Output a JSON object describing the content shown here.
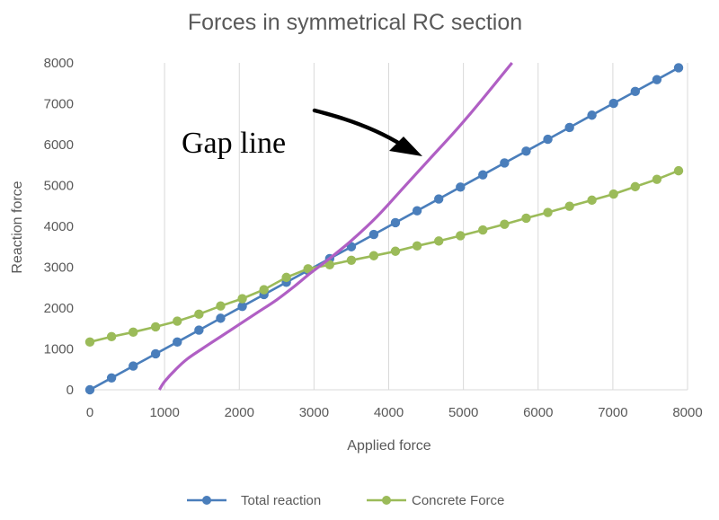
{
  "chart_data": {
    "type": "line",
    "title": "Forces in symmetrical RC section",
    "xlabel": "Applied force",
    "ylabel": "Reaction force",
    "xlim": [
      0,
      8000
    ],
    "ylim": [
      0,
      8000
    ],
    "x_ticks": [
      "0",
      "1000",
      "2000",
      "3000",
      "4000",
      "5000",
      "6000",
      "7000",
      "8000"
    ],
    "y_ticks": [
      "0",
      "1000",
      "2000",
      "3000",
      "4000",
      "5000",
      "6000",
      "7000",
      "8000"
    ],
    "grid": "vertical",
    "legend_position": "bottom",
    "series": [
      {
        "name": "Total reaction",
        "color": "#4a7ebb",
        "marker": "circle",
        "x": [
          0,
          290,
          580,
          880,
          1170,
          1460,
          1750,
          2040,
          2330,
          2630,
          2920,
          3210,
          3500,
          3800,
          4090,
          4380,
          4670,
          4960,
          5260,
          5550,
          5840,
          6130,
          6420,
          6720,
          7010,
          7300,
          7590,
          7880
        ],
        "y": [
          0,
          290,
          580,
          880,
          1170,
          1460,
          1750,
          2040,
          2330,
          2630,
          2920,
          3210,
          3500,
          3800,
          4090,
          4380,
          4670,
          4960,
          5260,
          5550,
          5840,
          6130,
          6420,
          6720,
          7010,
          7300,
          7590,
          7880
        ]
      },
      {
        "name": "Concrete Force",
        "color": "#9bbb59",
        "marker": "circle",
        "x": [
          0,
          290,
          580,
          880,
          1170,
          1460,
          1750,
          2040,
          2330,
          2630,
          2920,
          3210,
          3500,
          3800,
          4090,
          4380,
          4670,
          4960,
          5260,
          5550,
          5840,
          6130,
          6420,
          6720,
          7010,
          7300,
          7590,
          7880
        ],
        "y": [
          1170,
          1300,
          1410,
          1540,
          1680,
          1850,
          2050,
          2230,
          2450,
          2750,
          2960,
          3060,
          3170,
          3280,
          3390,
          3520,
          3640,
          3770,
          3910,
          4050,
          4200,
          4340,
          4490,
          4640,
          4790,
          4970,
          5150,
          5360
        ]
      }
    ],
    "gap_line": {
      "color": "#b05fc4",
      "x": [
        930,
        1000,
        1150,
        1300,
        1500,
        1750,
        2000,
        2250,
        2500,
        2750,
        2950,
        3200,
        3500,
        3850,
        4200,
        4550,
        4900,
        5250,
        5650
      ],
      "y": [
        0,
        200,
        500,
        750,
        1000,
        1300,
        1600,
        1900,
        2200,
        2550,
        2850,
        3200,
        3650,
        4250,
        4950,
        5650,
        6350,
        7100,
        8000
      ]
    },
    "annotation": {
      "text": "Gap line",
      "arrow_target": "gap-line"
    }
  }
}
